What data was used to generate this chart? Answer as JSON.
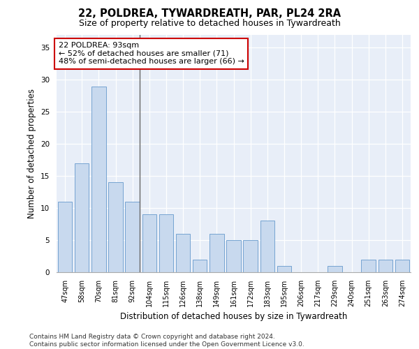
{
  "title1": "22, POLDREA, TYWARDREATH, PAR, PL24 2RA",
  "title2": "Size of property relative to detached houses in Tywardreath",
  "xlabel": "Distribution of detached houses by size in Tywardreath",
  "ylabel": "Number of detached properties",
  "categories": [
    "47sqm",
    "58sqm",
    "70sqm",
    "81sqm",
    "92sqm",
    "104sqm",
    "115sqm",
    "126sqm",
    "138sqm",
    "149sqm",
    "161sqm",
    "172sqm",
    "183sqm",
    "195sqm",
    "206sqm",
    "217sqm",
    "229sqm",
    "240sqm",
    "251sqm",
    "263sqm",
    "274sqm"
  ],
  "values": [
    11,
    17,
    29,
    14,
    11,
    9,
    9,
    6,
    2,
    6,
    5,
    5,
    8,
    1,
    0,
    0,
    1,
    0,
    2,
    2,
    2
  ],
  "bar_color": "#c8d9ee",
  "bar_edge_color": "#6699cc",
  "highlight_index": 4,
  "highlight_line_color": "#666666",
  "annotation_text": "22 POLDREA: 93sqm\n← 52% of detached houses are smaller (71)\n48% of semi-detached houses are larger (66) →",
  "annotation_box_color": "#ffffff",
  "annotation_box_edge_color": "#cc0000",
  "ylim": [
    0,
    37
  ],
  "yticks": [
    0,
    5,
    10,
    15,
    20,
    25,
    30,
    35
  ],
  "background_color": "#e8eef8",
  "footer_text": "Contains HM Land Registry data © Crown copyright and database right 2024.\nContains public sector information licensed under the Open Government Licence v3.0.",
  "title1_fontsize": 10.5,
  "title2_fontsize": 9,
  "xlabel_fontsize": 8.5,
  "ylabel_fontsize": 8.5,
  "annotation_fontsize": 8,
  "footer_fontsize": 6.5
}
